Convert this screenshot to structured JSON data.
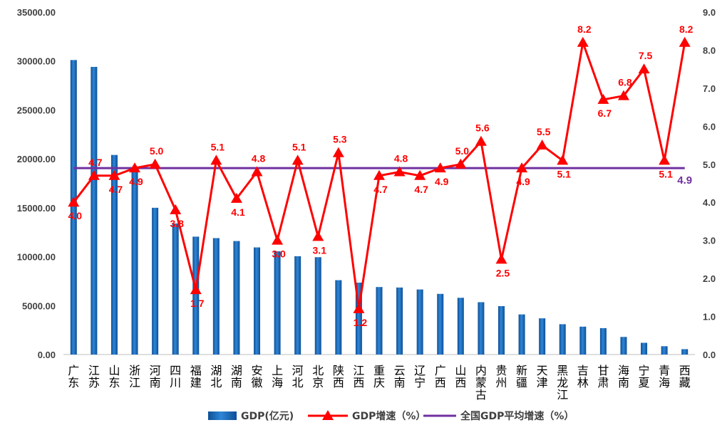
{
  "chart_data": {
    "type": "bar",
    "categories": [
      "广东",
      "江苏",
      "山东",
      "浙江",
      "河南",
      "四川",
      "福建",
      "湖北",
      "湖南",
      "安徽",
      "上海",
      "河北",
      "北京",
      "陕西",
      "江西",
      "重庆",
      "云南",
      "辽宁",
      "广西",
      "山西",
      "内蒙古",
      "贵州",
      "新疆",
      "天津",
      "黑龙江",
      "吉林",
      "甘肃",
      "海南",
      "宁夏",
      "青海",
      "西藏"
    ],
    "series": [
      {
        "name": "GDP(亿元)",
        "type": "bar",
        "axis": "left",
        "color": "#1f6fb8",
        "values": [
          30100,
          29400,
          20400,
          19000,
          15000,
          13400,
          12050,
          11900,
          11600,
          10950,
          10550,
          10050,
          9950,
          7600,
          7350,
          6900,
          6850,
          6650,
          6200,
          5800,
          5350,
          4950,
          4100,
          3700,
          3100,
          2850,
          2700,
          1800,
          1200,
          850,
          550
        ]
      },
      {
        "name": "GDP增速（%）",
        "type": "line",
        "axis": "right",
        "color": "#ff0000",
        "marker": "triangle",
        "values": [
          4.0,
          4.7,
          4.7,
          4.9,
          5.0,
          3.8,
          1.7,
          5.1,
          4.1,
          4.8,
          3.0,
          5.1,
          3.1,
          5.3,
          1.2,
          4.7,
          4.8,
          4.7,
          4.9,
          5.0,
          5.6,
          2.5,
          4.9,
          5.5,
          5.1,
          8.2,
          6.7,
          6.8,
          7.5,
          5.1,
          8.2
        ],
        "labels": [
          "4.0",
          "4.7",
          "4.7",
          "4.9",
          "5.0",
          "3.8",
          "1.7",
          "5.1",
          "4.1",
          "4.8",
          "3.0",
          "5.1",
          "3.1",
          "5.3",
          "1.2",
          "4.7",
          "4.8",
          "4.7",
          "4.9",
          "5.0",
          "5.6",
          "2.5",
          "4.9",
          "5.5",
          "5.1",
          "8.2",
          "6.7",
          "6.8",
          "7.5",
          "5.1",
          "8.2"
        ]
      },
      {
        "name": "全国GDP平均增速（%）",
        "type": "line",
        "axis": "right",
        "color": "#7030a0",
        "value": 4.9,
        "label": "4.9"
      }
    ],
    "y_left": {
      "min": 0,
      "max": 35000,
      "step": 5000,
      "ticks": [
        "0.00",
        "5000.00",
        "10000.00",
        "15000.00",
        "20000.00",
        "25000.00",
        "30000.00",
        "35000.00"
      ]
    },
    "y_right": {
      "min": 0,
      "max": 9,
      "step": 1,
      "ticks": [
        "0.0",
        "1.0",
        "2.0",
        "3.0",
        "4.0",
        "5.0",
        "6.0",
        "7.0",
        "8.0",
        "9.0"
      ]
    },
    "grid": false,
    "legend": "bottom"
  }
}
